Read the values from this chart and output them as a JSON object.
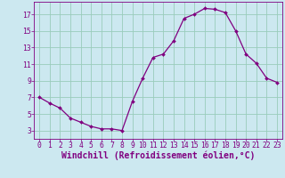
{
  "x": [
    0,
    1,
    2,
    3,
    4,
    5,
    6,
    7,
    8,
    9,
    10,
    11,
    12,
    13,
    14,
    15,
    16,
    17,
    18,
    19,
    20,
    21,
    22,
    23
  ],
  "y": [
    7.0,
    6.3,
    5.7,
    4.5,
    4.0,
    3.5,
    3.2,
    3.2,
    3.0,
    6.5,
    9.3,
    11.8,
    12.2,
    13.8,
    16.5,
    17.0,
    17.7,
    17.6,
    17.2,
    15.0,
    12.2,
    11.1,
    9.3,
    8.8
  ],
  "line_color": "#800080",
  "marker": "D",
  "marker_size": 2.0,
  "bg_color": "#cce8f0",
  "grid_color": "#99ccbb",
  "xlabel": "Windchill (Refroidissement éolien,°C)",
  "xlim": [
    -0.5,
    23.5
  ],
  "ylim": [
    2.0,
    18.5
  ],
  "yticks": [
    3,
    5,
    7,
    9,
    11,
    13,
    15,
    17
  ],
  "xticks": [
    0,
    1,
    2,
    3,
    4,
    5,
    6,
    7,
    8,
    9,
    10,
    11,
    12,
    13,
    14,
    15,
    16,
    17,
    18,
    19,
    20,
    21,
    22,
    23
  ],
  "xlabel_color": "#800080",
  "tick_color": "#800080",
  "font_size_label": 7.0,
  "font_size_tick": 5.8
}
